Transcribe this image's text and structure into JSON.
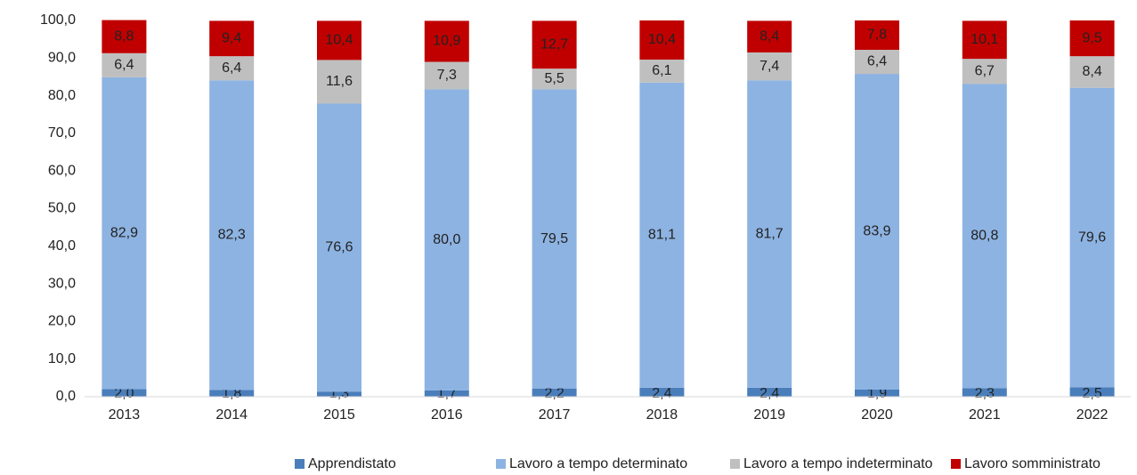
{
  "chart_data": {
    "type": "stacked_bar",
    "categories": [
      "2013",
      "2014",
      "2015",
      "2016",
      "2017",
      "2018",
      "2019",
      "2020",
      "2021",
      "2022"
    ],
    "series": [
      {
        "name": "Apprendistato",
        "color": "#4a7ebb",
        "values": [
          2.0,
          1.8,
          1.3,
          1.7,
          2.2,
          2.4,
          2.4,
          1.9,
          2.3,
          2.5
        ],
        "value_labels": [
          "2,0",
          "1,8",
          "1,3",
          "1,7",
          "2,2",
          "2,4",
          "2,4",
          "1,9",
          "2,3",
          "2,5"
        ]
      },
      {
        "name": "Lavoro a tempo determinato",
        "color": "#8db3e2",
        "values": [
          82.9,
          82.3,
          76.6,
          80.0,
          79.5,
          81.1,
          81.7,
          83.9,
          80.8,
          79.6
        ],
        "value_labels": [
          "82,9",
          "82,3",
          "76,6",
          "80,0",
          "79,5",
          "81,1",
          "81,7",
          "83,9",
          "80,8",
          "79,6"
        ]
      },
      {
        "name": "Lavoro a tempo indeterminato",
        "color": "#bfbfbf",
        "values": [
          6.4,
          6.4,
          11.6,
          7.3,
          5.5,
          6.1,
          7.4,
          6.4,
          6.7,
          8.4
        ],
        "value_labels": [
          "6,4",
          "6,4",
          "11,6",
          "7,3",
          "5,5",
          "6,1",
          "7,4",
          "6,4",
          "6,7",
          "8,4"
        ]
      },
      {
        "name": "Lavoro somministrato",
        "color": "#c00000",
        "values": [
          8.8,
          9.4,
          10.4,
          10.9,
          12.7,
          10.4,
          8.4,
          7.8,
          10.1,
          9.5
        ],
        "value_labels": [
          "8,8",
          "9,4",
          "10,4",
          "10,9",
          "12,7",
          "10,4",
          "8,4",
          "7,8",
          "10,1",
          "9,5"
        ]
      }
    ],
    "ylim": [
      0,
      100
    ],
    "yticks": [
      {
        "value": 0,
        "label": "0,0"
      },
      {
        "value": 10,
        "label": "10,0"
      },
      {
        "value": 20,
        "label": "20,0"
      },
      {
        "value": 30,
        "label": "30,0"
      },
      {
        "value": 40,
        "label": "40,0"
      },
      {
        "value": 50,
        "label": "50,0"
      },
      {
        "value": 60,
        "label": "60,0"
      },
      {
        "value": 70,
        "label": "70,0"
      },
      {
        "value": 80,
        "label": "80,0"
      },
      {
        "value": 90,
        "label": "90,0"
      },
      {
        "value": 100,
        "label": "100,0"
      }
    ],
    "legend": "bottom"
  }
}
